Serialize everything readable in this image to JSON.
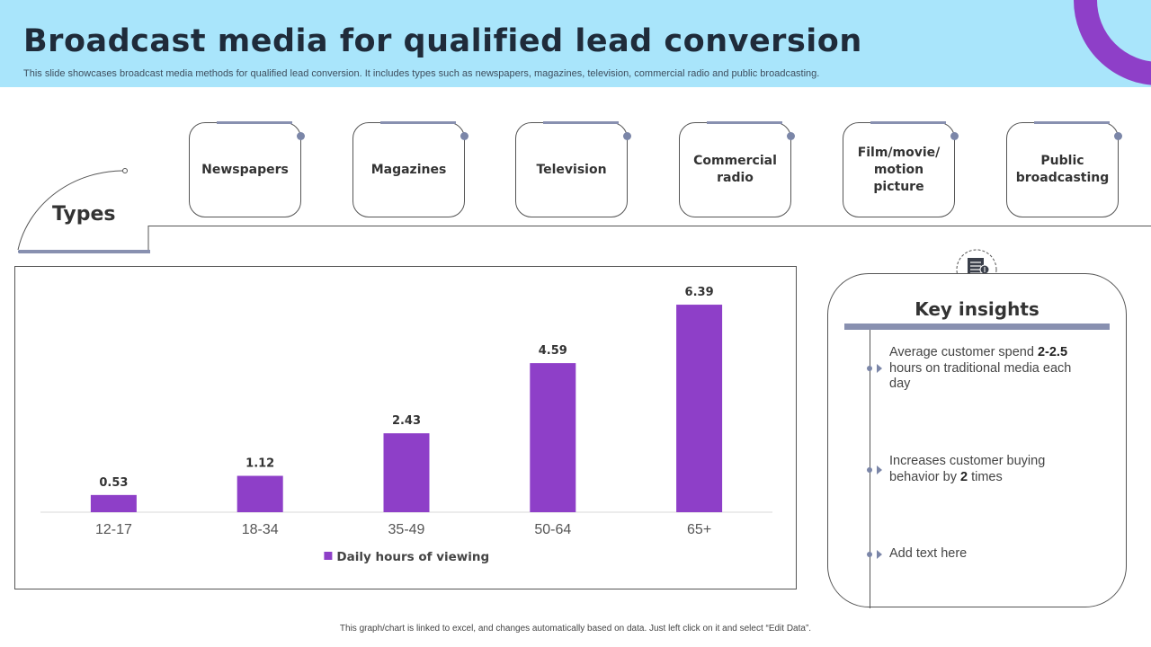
{
  "header": {
    "title": "Broadcast media for qualified lead conversion",
    "subtitle": "This slide showcases broadcast media methods for qualified lead conversion. It includes types such as newspapers, magazines, television, commercial radio and public broadcasting."
  },
  "types": {
    "label": "Types",
    "items": [
      "Newspapers",
      "Magazines",
      "Television",
      "Commercial radio",
      "Film/movie/ motion picture",
      "Public broadcasting"
    ]
  },
  "chart_data": {
    "type": "bar",
    "categories": [
      "12-17",
      "18-34",
      "35-49",
      "50-64",
      "65+"
    ],
    "values": [
      0.53,
      1.12,
      2.43,
      4.59,
      6.39
    ],
    "series": [
      {
        "name": "Daily hours of viewing",
        "values": [
          0.53,
          1.12,
          2.43,
          4.59,
          6.39
        ]
      }
    ],
    "title": "",
    "xlabel": "",
    "ylabel": "",
    "ylim": [
      0,
      7
    ],
    "legend": "bottom",
    "bar_color": "#8e3fc8",
    "grid": false
  },
  "insights": {
    "title": "Key insights",
    "items": [
      {
        "pre": "Average customer spend ",
        "bold": "2-2.5",
        "post": " hours on traditional media each day"
      },
      {
        "pre": "Increases customer buying behavior by ",
        "bold": "2",
        "post": " times"
      },
      {
        "pre": "Add text here",
        "bold": "",
        "post": ""
      }
    ]
  },
  "footnote": "This graph/chart is linked to excel, and changes automatically based on data. Just left click on it and select “Edit Data”.",
  "colors": {
    "header_bg": "#a9e5fb",
    "accent_purple": "#8e3fc8",
    "slate": "#8890b0"
  }
}
